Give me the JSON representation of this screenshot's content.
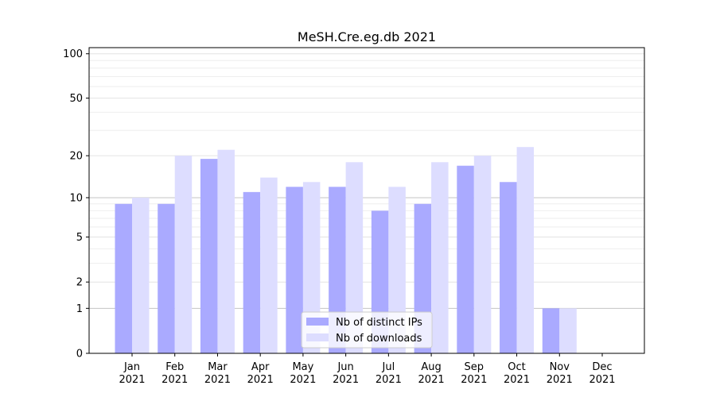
{
  "chart_data": {
    "type": "bar",
    "title": "MeSH.Cre.eg.db 2021",
    "xlabel": "",
    "ylabel": "",
    "y_scale": "log(1+y)",
    "ylim": [
      0,
      110
    ],
    "y_ticks": [
      0,
      1,
      2,
      5,
      10,
      20,
      50,
      100
    ],
    "grid": "horizontal",
    "legend_position": "lower-center",
    "categories": [
      "Jan\n2021",
      "Feb\n2021",
      "Mar\n2021",
      "Apr\n2021",
      "May\n2021",
      "Jun\n2021",
      "Jul\n2021",
      "Aug\n2021",
      "Sep\n2021",
      "Oct\n2021",
      "Nov\n2021",
      "Dec\n2021"
    ],
    "series": [
      {
        "name": "Nb of distinct IPs",
        "color": "#aaaaff",
        "values": [
          9,
          9,
          19,
          11,
          12,
          12,
          8,
          9,
          17,
          13,
          1,
          0
        ]
      },
      {
        "name": "Nb of downloads",
        "color": "#ddddff",
        "values": [
          10,
          20,
          22,
          14,
          13,
          18,
          12,
          18,
          20,
          23,
          1,
          0
        ]
      }
    ]
  }
}
